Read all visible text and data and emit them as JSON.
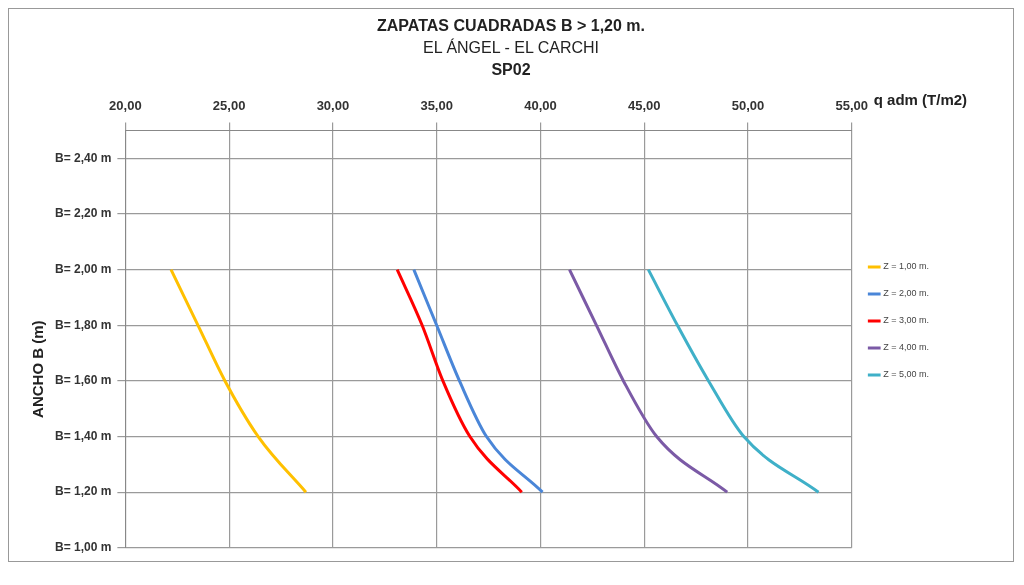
{
  "chart_data": {
    "type": "line",
    "title": "ZAPATAS CUADRADAS  B > 1,20 m.",
    "subtitle": "EL ÁNGEL - EL CARCHI",
    "annotations": [
      "SP02"
    ],
    "xlabel": "q adm (T/m2)",
    "ylabel": "ANCHO B (m)",
    "xlim": [
      20,
      55
    ],
    "xticks": [
      {
        "value": 20,
        "label": "20,00"
      },
      {
        "value": 25,
        "label": "25,00"
      },
      {
        "value": 30,
        "label": "30,00"
      },
      {
        "value": 35,
        "label": "35,00"
      },
      {
        "value": 40,
        "label": "40,00"
      },
      {
        "value": 45,
        "label": "45,00"
      },
      {
        "value": 50,
        "label": "50,00"
      },
      {
        "value": 55,
        "label": "55,00"
      }
    ],
    "ylim": [
      1.0,
      2.5
    ],
    "yticks": [
      {
        "value": 1.0,
        "label": "B= 1,00 m"
      },
      {
        "value": 1.2,
        "label": "B= 1,20 m"
      },
      {
        "value": 1.4,
        "label": "B= 1,40 m"
      },
      {
        "value": 1.6,
        "label": "B= 1,60 m"
      },
      {
        "value": 1.8,
        "label": "B= 1,80 m"
      },
      {
        "value": 2.0,
        "label": "B= 2,00 m"
      },
      {
        "value": 2.2,
        "label": "B= 2,20 m"
      },
      {
        "value": 2.4,
        "label": "B= 2,40 m"
      }
    ],
    "grid": true,
    "legend": "right",
    "marker": "none",
    "line_style": "solid",
    "series": [
      {
        "name": "Z = 1,00 m.",
        "color": "#ffc000",
        "x": [
          22.2,
          23.5,
          24.8,
          26.4,
          28.7
        ],
        "values": [
          2.0,
          1.8,
          1.6,
          1.4,
          1.2
        ]
      },
      {
        "name": "Z = 2,00 m.",
        "color": "#4a86d8",
        "x": [
          33.9,
          35.0,
          36.1,
          37.4,
          40.1
        ],
        "values": [
          2.0,
          1.8,
          1.6,
          1.4,
          1.2
        ]
      },
      {
        "name": "Z = 3,00 m.",
        "color": "#ff0000",
        "x": [
          33.1,
          34.3,
          35.3,
          36.6,
          39.1
        ],
        "values": [
          2.0,
          1.8,
          1.6,
          1.4,
          1.2
        ]
      },
      {
        "name": "Z = 4,00 m.",
        "color": "#7b5aa6",
        "x": [
          41.4,
          42.7,
          44.0,
          45.6,
          49.0
        ],
        "values": [
          2.0,
          1.8,
          1.6,
          1.4,
          1.2
        ]
      },
      {
        "name": "Z = 5,00 m.",
        "color": "#3fb0c8",
        "x": [
          45.2,
          46.6,
          48.1,
          49.8,
          53.4
        ],
        "values": [
          2.0,
          1.8,
          1.6,
          1.4,
          1.2
        ]
      }
    ]
  }
}
